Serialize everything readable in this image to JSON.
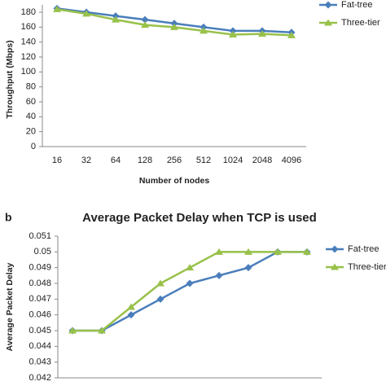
{
  "chart_data": [
    {
      "type": "line",
      "y_label": "Throughput (Mbps)",
      "x_label": "Number of nodes",
      "categories": [
        "16",
        "32",
        "64",
        "128",
        "256",
        "512",
        "1024",
        "2048",
        "4096"
      ],
      "series": [
        {
          "name": "Fat-tree",
          "color": "#4a7ebb",
          "marker": "diamond",
          "values": [
            185,
            180,
            175,
            170,
            165,
            160,
            155,
            155,
            153
          ]
        },
        {
          "name": "Three-tier",
          "color": "#98c14a",
          "marker": "triangle",
          "values": [
            184,
            178,
            170,
            163,
            160,
            155,
            150,
            151,
            149
          ]
        }
      ],
      "ylim": [
        0,
        190
      ],
      "yticks": [
        0,
        20,
        40,
        60,
        80,
        100,
        120,
        140,
        160,
        180
      ],
      "grid": false,
      "legend": "right"
    },
    {
      "type": "line",
      "panel": "b",
      "title": "Average Packet Delay when TCP is used",
      "y_label": "Average Packet Delay",
      "categories": [
        null,
        null,
        null,
        null,
        null,
        null,
        null,
        null,
        null
      ],
      "series": [
        {
          "name": "Fat-tree",
          "color": "#4a7ebb",
          "marker": "diamond",
          "values": [
            0.045,
            0.045,
            0.046,
            0.047,
            0.048,
            0.0485,
            0.049,
            0.05,
            0.05
          ]
        },
        {
          "name": "Three-tier",
          "color": "#98c14a",
          "marker": "triangle",
          "values": [
            0.045,
            0.045,
            0.0465,
            0.048,
            0.049,
            0.05,
            0.05,
            0.05,
            0.05
          ]
        }
      ],
      "ylim": [
        0.042,
        0.051
      ],
      "yticks": [
        0.042,
        0.043,
        0.044,
        0.045,
        0.046,
        0.047,
        0.048,
        0.049,
        0.05,
        0.051
      ],
      "grid": false,
      "legend": "right"
    }
  ]
}
